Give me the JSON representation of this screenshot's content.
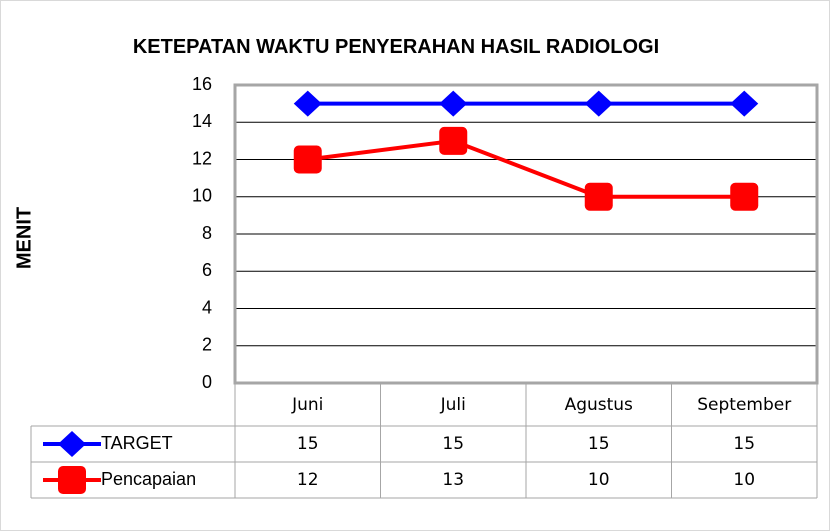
{
  "chart_data": {
    "type": "line",
    "title": "KETEPATAN WAKTU PENYERAHAN HASIL RADIOLOGI",
    "ylabel": "MENIT",
    "categories": [
      "Juni",
      "Juli",
      "Agustus",
      "September"
    ],
    "series": [
      {
        "name": "TARGET",
        "color": "#0000ff",
        "marker": "diamond",
        "values": [
          15,
          15,
          15,
          15
        ]
      },
      {
        "name": "Pencapaian",
        "color": "#ff0000",
        "marker": "square",
        "values": [
          12,
          13,
          10,
          10
        ]
      }
    ],
    "ylim": [
      0,
      16
    ],
    "yticks": [
      0,
      2,
      4,
      6,
      8,
      10,
      12,
      14,
      16
    ],
    "grid": true
  }
}
